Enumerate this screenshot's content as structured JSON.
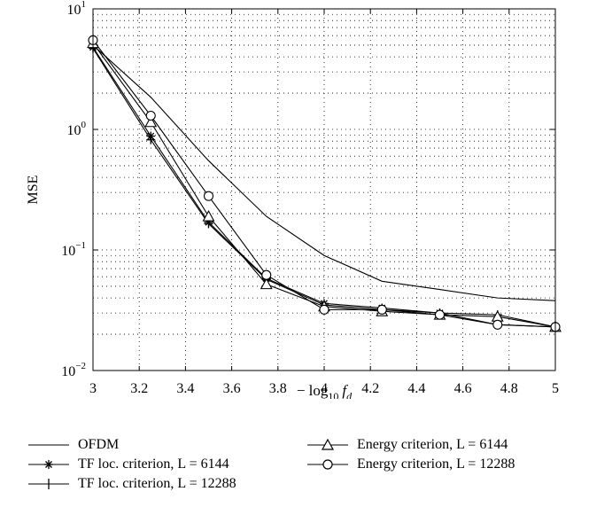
{
  "chart_data": {
    "type": "line",
    "title": "",
    "xlabel": "− log10 fd",
    "xlabel_parts": {
      "prefix": "− log",
      "sub1": "10",
      "f": "f",
      "sub2": "d"
    },
    "ylabel": "MSE",
    "xlim": [
      3,
      5
    ],
    "ylim": [
      0.01,
      10
    ],
    "yscale": "log",
    "grid": true,
    "x_ticks": [
      3,
      3.2,
      3.4,
      3.6,
      3.8,
      4,
      4.2,
      4.4,
      4.6,
      4.8,
      5
    ],
    "x_tick_labels": [
      "3",
      "3.2",
      "3.4",
      "3.6",
      "3.8",
      "4",
      "4.2",
      "4.4",
      "4.6",
      "4.8",
      "5"
    ],
    "y_ticks": [
      {
        "value": 10,
        "base": "10",
        "exp": "1"
      },
      {
        "value": 1,
        "base": "10",
        "exp": "0"
      },
      {
        "value": 0.1,
        "base": "10",
        "exp": "−1"
      },
      {
        "value": 0.01,
        "base": "10",
        "exp": "−2"
      }
    ],
    "x": [
      3,
      3.25,
      3.5,
      3.75,
      4,
      4.25,
      4.5,
      4.75,
      5
    ],
    "series": [
      {
        "name": "OFDM",
        "marker": "none",
        "values": [
          5.0,
          1.85,
          0.55,
          0.19,
          0.09,
          0.055,
          0.047,
          0.04,
          0.038
        ]
      },
      {
        "name": "TF loc. criterion, L = 6144",
        "marker": "star",
        "values": [
          4.8,
          0.88,
          0.17,
          0.058,
          0.036,
          0.033,
          0.03,
          0.024,
          0.023
        ]
      },
      {
        "name": "TF loc. criterion, L = 12288",
        "marker": "plus",
        "values": [
          4.7,
          0.82,
          0.165,
          0.057,
          0.035,
          0.032,
          0.03,
          0.029,
          0.023
        ]
      },
      {
        "name": "Energy criterion, L = 6144",
        "marker": "triangle",
        "values": [
          5.2,
          1.15,
          0.19,
          0.052,
          0.034,
          0.031,
          0.029,
          0.028,
          0.023
        ]
      },
      {
        "name": "Energy criterion, L = 12288",
        "marker": "circle",
        "values": [
          5.5,
          1.3,
          0.28,
          0.062,
          0.032,
          0.032,
          0.029,
          0.024,
          0.023
        ]
      }
    ],
    "legend_placement": "bottom"
  }
}
